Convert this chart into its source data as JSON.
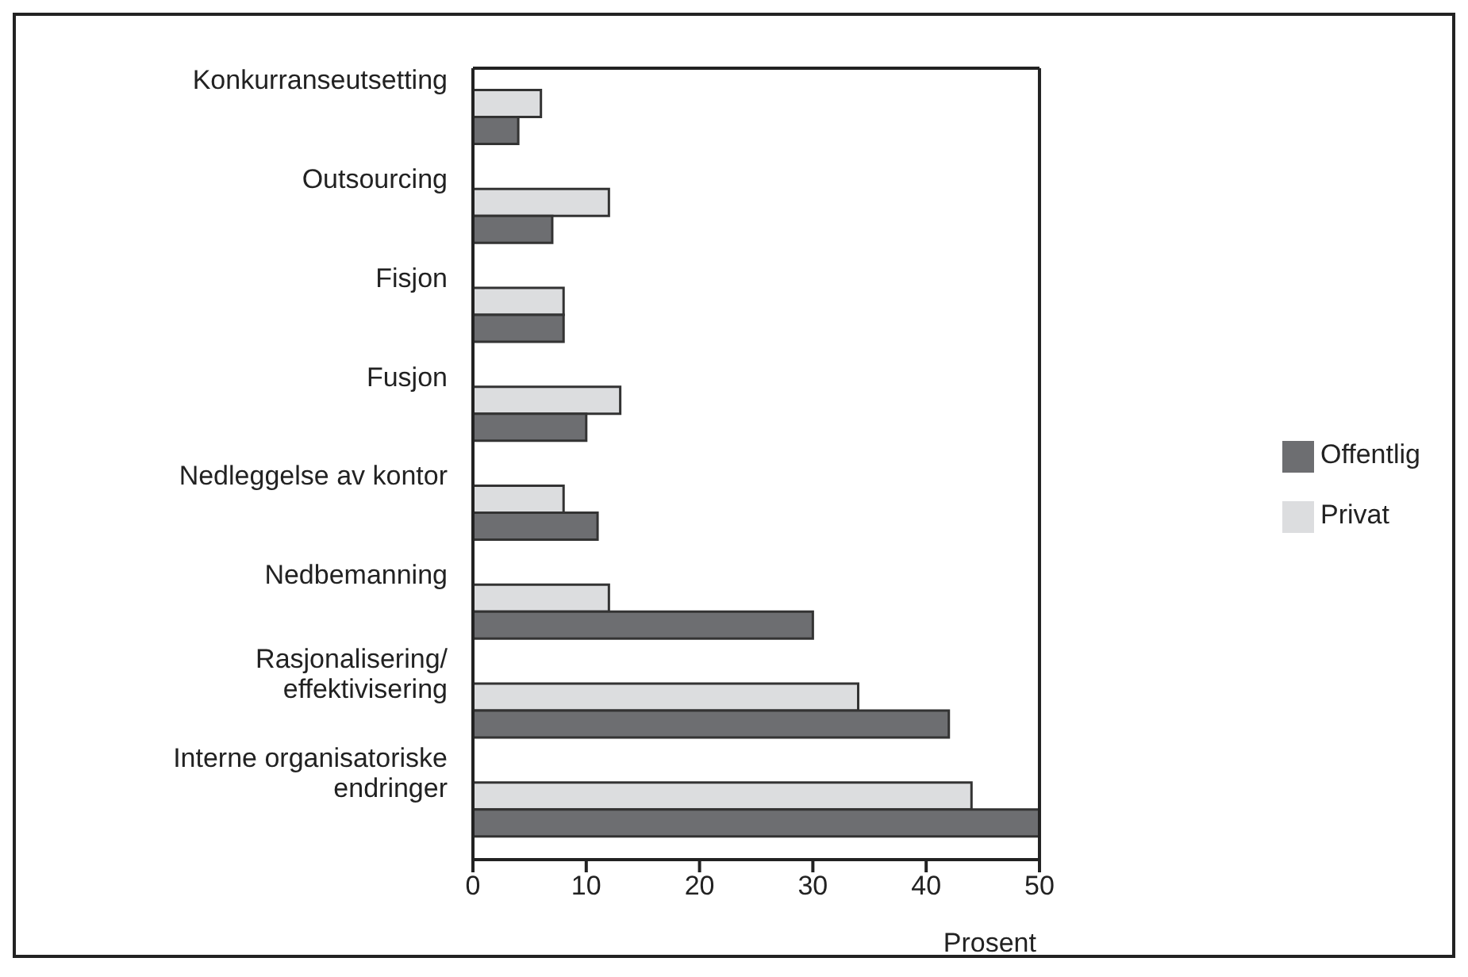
{
  "chart_data": {
    "type": "bar",
    "orientation": "horizontal",
    "xlabel": "Prosent",
    "categories": [
      "Konkurranseutsetting",
      "Outsourcing",
      "Fisjon",
      "Fusjon",
      "Nedleggelse av kontor",
      "Nedbemanning",
      "Rasjonalisering/ effektivisering",
      "Interne organisatoriske endringer"
    ],
    "series": [
      {
        "name": "Privat",
        "color": "#dcdddf",
        "values": [
          6,
          12,
          8,
          13,
          8,
          12,
          34,
          44
        ]
      },
      {
        "name": "Offentlig",
        "color": "#6d6e71",
        "values": [
          4,
          7,
          8,
          10,
          11,
          30,
          42,
          50
        ]
      }
    ],
    "xlim": [
      0,
      50
    ],
    "xticks": [
      0,
      10,
      20,
      30,
      40,
      50
    ],
    "grid": false,
    "legend": "right"
  }
}
